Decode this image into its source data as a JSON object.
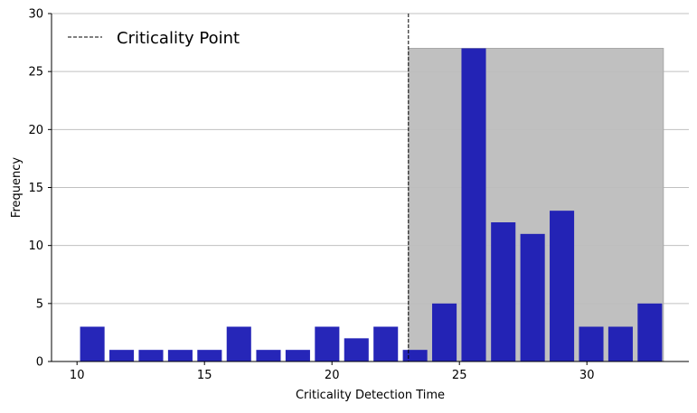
{
  "chart_data": {
    "type": "bar",
    "xlabel": "Criticality Detection Time",
    "ylabel": "Frequency",
    "xlim": [
      9,
      34
    ],
    "ylim": [
      0,
      30
    ],
    "xticks": [
      10,
      15,
      20,
      25,
      30
    ],
    "yticks": [
      0,
      5,
      10,
      15,
      20,
      25,
      30
    ],
    "grid": "horizontal",
    "legend_placement": "top-left",
    "bar_width": 1.0,
    "bars": [
      {
        "start": 10.12,
        "end": 11.08,
        "value": 3
      },
      {
        "start": 11.27,
        "end": 12.23,
        "value": 1
      },
      {
        "start": 12.42,
        "end": 13.38,
        "value": 1
      },
      {
        "start": 13.57,
        "end": 14.53,
        "value": 1
      },
      {
        "start": 14.72,
        "end": 15.68,
        "value": 1
      },
      {
        "start": 15.87,
        "end": 16.83,
        "value": 3
      },
      {
        "start": 17.03,
        "end": 17.99,
        "value": 1
      },
      {
        "start": 18.18,
        "end": 19.14,
        "value": 1
      },
      {
        "start": 19.33,
        "end": 20.29,
        "value": 3
      },
      {
        "start": 20.48,
        "end": 21.44,
        "value": 2
      },
      {
        "start": 21.63,
        "end": 22.59,
        "value": 3
      },
      {
        "start": 22.78,
        "end": 23.74,
        "value": 1
      },
      {
        "start": 23.93,
        "end": 24.89,
        "value": 5
      },
      {
        "start": 25.08,
        "end": 26.04,
        "value": 27
      },
      {
        "start": 26.24,
        "end": 27.2,
        "value": 12
      },
      {
        "start": 27.39,
        "end": 28.35,
        "value": 11
      },
      {
        "start": 28.54,
        "end": 29.5,
        "value": 13
      },
      {
        "start": 29.69,
        "end": 30.65,
        "value": 3
      },
      {
        "start": 30.84,
        "end": 31.8,
        "value": 3
      },
      {
        "start": 31.99,
        "end": 32.95,
        "value": 5
      }
    ],
    "criticality_point": 23,
    "shaded_region": {
      "x": [
        23,
        33
      ],
      "y": [
        0,
        27
      ]
    },
    "legend": [
      "Criticality Point"
    ],
    "colors": {
      "bar": "#1a1ab4",
      "shade": "#bdbdbd",
      "grid": "#c0c0c0",
      "axis": "#000000"
    }
  }
}
